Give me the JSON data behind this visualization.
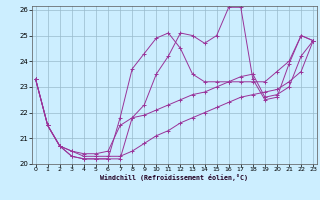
{
  "xlabel": "Windchill (Refroidissement éolien,°C)",
  "bg_color": "#cceeff",
  "line_color": "#993399",
  "grid_color": "#99bbcc",
  "xmin": 0,
  "xmax": 23,
  "ymin": 20,
  "ymax": 26,
  "x": [
    0,
    1,
    2,
    3,
    4,
    5,
    6,
    7,
    8,
    9,
    10,
    11,
    12,
    13,
    14,
    15,
    16,
    17,
    18,
    19,
    20,
    21,
    22,
    23
  ],
  "values1": [
    23.3,
    21.5,
    20.7,
    20.3,
    20.2,
    20.2,
    20.2,
    20.2,
    21.8,
    22.3,
    23.5,
    24.2,
    25.1,
    25.0,
    24.7,
    25.0,
    26.1,
    26.1,
    23.3,
    22.5,
    22.6,
    23.9,
    25.0,
    24.8
  ],
  "values2": [
    23.3,
    21.5,
    20.7,
    20.3,
    20.2,
    20.2,
    20.2,
    21.8,
    23.7,
    24.3,
    24.9,
    25.1,
    24.5,
    23.5,
    23.2,
    23.2,
    23.2,
    23.2,
    23.2,
    23.2,
    23.6,
    24.0,
    25.0,
    24.8
  ],
  "values3": [
    23.3,
    21.5,
    20.7,
    20.5,
    20.4,
    20.4,
    20.5,
    21.5,
    21.8,
    21.9,
    22.1,
    22.3,
    22.5,
    22.7,
    22.8,
    23.0,
    23.2,
    23.4,
    23.5,
    22.6,
    22.7,
    23.0,
    24.2,
    24.8
  ],
  "values4": [
    23.3,
    21.5,
    20.7,
    20.5,
    20.3,
    20.3,
    20.3,
    20.3,
    20.5,
    20.8,
    21.1,
    21.3,
    21.6,
    21.8,
    22.0,
    22.2,
    22.4,
    22.6,
    22.7,
    22.8,
    22.9,
    23.2,
    23.6,
    24.8
  ]
}
